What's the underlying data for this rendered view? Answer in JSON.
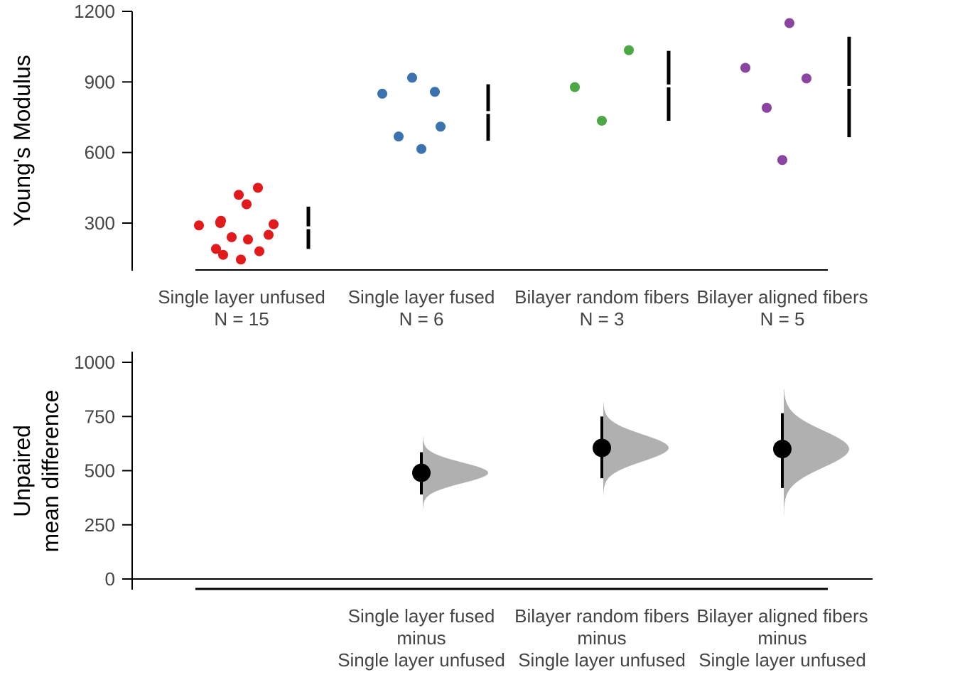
{
  "chart_data": [
    {
      "type": "scatter",
      "ylabel": "Young's Modulus",
      "ylim": [
        100,
        1200
      ],
      "yticks": [
        "300",
        "600",
        "900",
        "1200"
      ],
      "grid": false,
      "colors": {
        "Single layer unfused": "#e31a1c",
        "Single layer fused": "#3a73b0",
        "Bilayer random fibers": "#4ba845",
        "Bilayer aligned fibers": "#8b44a0"
      },
      "groups": [
        {
          "category": "Single layer unfused",
          "n_label": "N = 15",
          "values": [
            290,
            310,
            300,
            240,
            190,
            165,
            145,
            230,
            180,
            250,
            305,
            420,
            380,
            450,
            295
          ],
          "mean": 280,
          "sd_low": 190,
          "sd_high": 370
        },
        {
          "category": "Single layer fused",
          "n_label": "N = 6",
          "values": [
            850,
            918,
            858,
            668,
            615,
            710
          ],
          "mean": 770,
          "sd_low": 650,
          "sd_high": 890
        },
        {
          "category": "Bilayer random fibers",
          "n_label": "N = 3",
          "values": [
            878,
            735,
            1035
          ],
          "mean": 883,
          "sd_low": 735,
          "sd_high": 1032
        },
        {
          "category": "Bilayer aligned fibers",
          "n_label": "N = 5",
          "values": [
            960,
            790,
            1150,
            568,
            915
          ],
          "mean": 877,
          "sd_low": 665,
          "sd_high": 1092
        }
      ]
    },
    {
      "type": "estimation",
      "ylabel_lines": [
        "Unpaired",
        "mean difference"
      ],
      "ylim": [
        0,
        1000
      ],
      "yticks": [
        "0",
        "250",
        "500",
        "750",
        "1000"
      ],
      "grid": false,
      "comparisons": [
        {
          "label_lines": [
            "Single layer fused",
            "minus",
            "Single layer unfused"
          ],
          "estimate": 490,
          "ci": [
            390,
            585
          ],
          "dist_min": 325,
          "dist_max": 660
        },
        {
          "label_lines": [
            "Bilayer random fibers",
            "minus",
            "Single layer unfused"
          ],
          "estimate": 605,
          "ci": [
            465,
            750
          ],
          "dist_min": 385,
          "dist_max": 818
        },
        {
          "label_lines": [
            "Bilayer aligned fibers",
            "minus",
            "Single layer unfused"
          ],
          "estimate": 600,
          "ci": [
            420,
            765
          ],
          "dist_min": 280,
          "dist_max": 875
        }
      ]
    }
  ]
}
